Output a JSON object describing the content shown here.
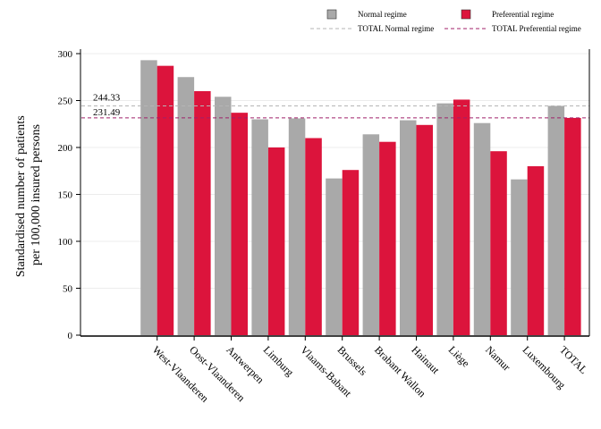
{
  "chart_data": {
    "type": "bar",
    "ylabel": [
      "Standardised number of patients",
      "per 100,000 insured persons"
    ],
    "xlabel": "",
    "ylim": [
      0,
      300
    ],
    "yticks": [
      "0",
      "50",
      "100",
      "150",
      "200",
      "250",
      "300"
    ],
    "categories": [
      "West-Vlaanderen",
      "Oost-Vlaanderen",
      "Antwerpen",
      "Limburg",
      "Vlaams-Babant",
      "Brussels",
      "Brabant Wallon",
      "Hainaut",
      "Liège",
      "Namur",
      "Luxembourg",
      "TOTAL"
    ],
    "series": [
      {
        "name": "Normal regime",
        "color": "#a9a9a9",
        "values": [
          293,
          275,
          254,
          230,
          231,
          167,
          214,
          229,
          247,
          226,
          166,
          244.33
        ]
      },
      {
        "name": "Preferential regime",
        "color": "#dc143c",
        "values": [
          287,
          260,
          237,
          200,
          210,
          176,
          206,
          224,
          251,
          196,
          180,
          231.49
        ]
      }
    ],
    "reference_lines": [
      {
        "name": "TOTAL Normal regime",
        "value": 244.33,
        "label": "244.33",
        "color": "#b5b5b5",
        "style": "dashed"
      },
      {
        "name": "TOTAL Preferential regime",
        "value": 231.49,
        "label": "231.49",
        "color": "#a0206a",
        "style": "dashed"
      }
    ],
    "legend_position": "top-right",
    "grid": "horizontal"
  }
}
